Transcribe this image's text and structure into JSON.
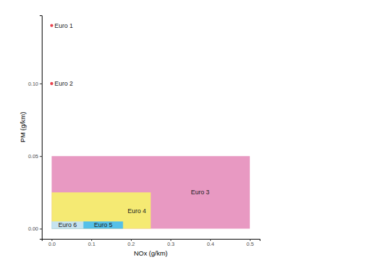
{
  "chart_data": {
    "type": "scatter",
    "x_label": "NOx (g/km)",
    "y_label": "PM (g/km)",
    "xlim": [
      -0.025,
      0.525
    ],
    "ylim": [
      -0.007,
      0.147
    ],
    "xticks": [
      {
        "value": 0,
        "label": "0.0"
      },
      {
        "value": 0.1,
        "label": "0.1"
      },
      {
        "value": 0.2,
        "label": "0.2"
      },
      {
        "value": 0.3,
        "label": "0.3"
      },
      {
        "value": 0.4,
        "label": "0.4"
      },
      {
        "value": 0.5,
        "label": "0.5"
      }
    ],
    "yticks": [
      {
        "value": 0,
        "label": "0.00"
      },
      {
        "value": 0.05,
        "label": "0.05"
      },
      {
        "value": 0.1,
        "label": "0.10"
      }
    ],
    "grid": false,
    "series": [
      {
        "name": "Euro 1",
        "type": "scatter",
        "marker": "circle",
        "color": "#e8434f",
        "x": [
          0
        ],
        "values": [
          0.14
        ]
      },
      {
        "name": "Euro 2",
        "type": "scatter",
        "marker": "circle",
        "color": "#e8434f",
        "x": [
          0
        ],
        "values": [
          0.1
        ]
      },
      {
        "name": "Euro 3",
        "type": "rect",
        "color": "#e899c2",
        "x": [
          0.5
        ],
        "values": [
          0.05
        ]
      },
      {
        "name": "Euro 4",
        "type": "rect",
        "color": "#f5ea73",
        "x": [
          0.25
        ],
        "values": [
          0.025
        ]
      },
      {
        "name": "Euro 5",
        "type": "rect",
        "color": "#55c0e8",
        "x": [
          0.18
        ],
        "values": [
          0.005
        ]
      },
      {
        "name": "Euro 6",
        "type": "rect",
        "color": "#c6e3ef",
        "x": [
          0.08
        ],
        "values": [
          0.005
        ]
      }
    ]
  }
}
